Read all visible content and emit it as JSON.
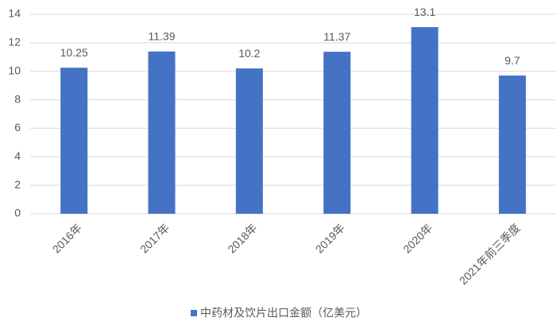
{
  "chart_data": {
    "type": "bar",
    "categories": [
      "2016年",
      "2017年",
      "2018年",
      "2019年",
      "2020年",
      "2021年前三季度"
    ],
    "series": [
      {
        "name": "中药材及饮片出口金额（亿美元）",
        "color": "#4472c4",
        "values": [
          10.25,
          11.39,
          10.2,
          11.37,
          13.1,
          9.7
        ]
      }
    ],
    "ylim": [
      0,
      14
    ],
    "yticks": [
      0,
      2,
      4,
      6,
      8,
      10,
      12,
      14
    ],
    "grid": true,
    "legend": "bottom"
  }
}
